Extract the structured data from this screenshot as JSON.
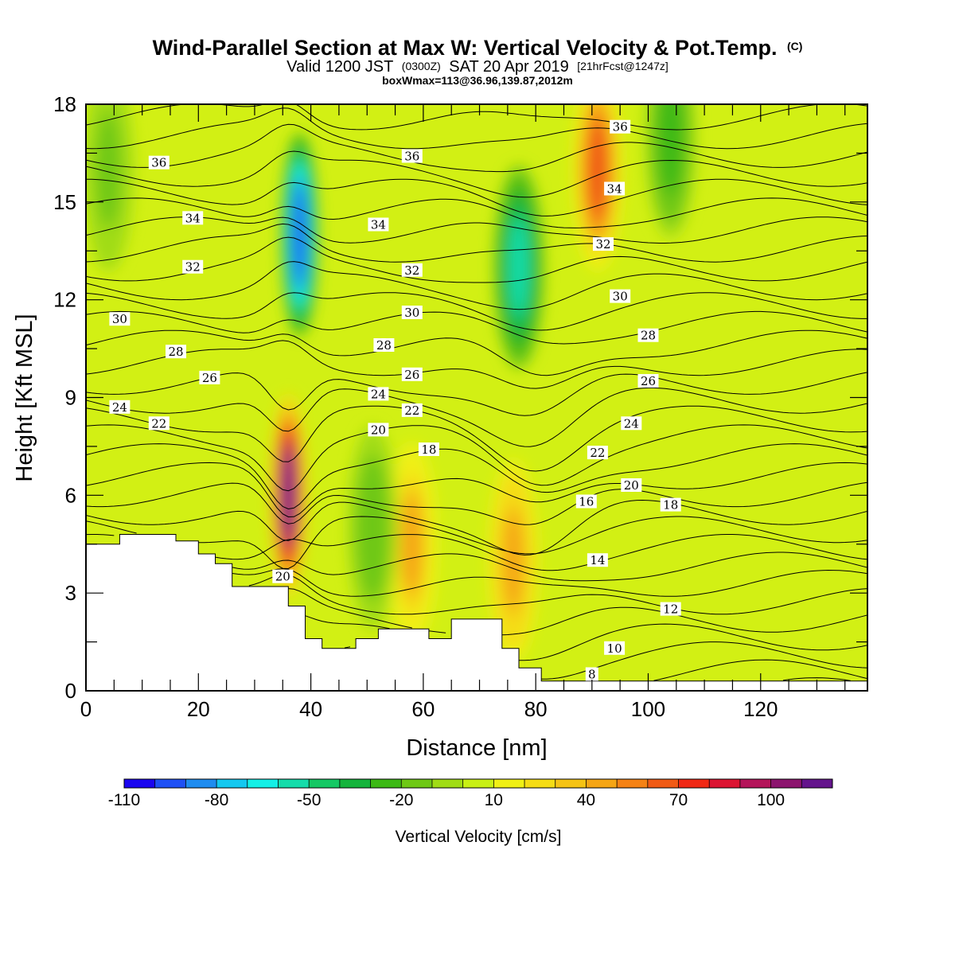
{
  "title": {
    "main": "Wind-Parallel Section at Max W: Vertical Velocity & Pot.Temp.",
    "copyright": "(C)",
    "valid_prefix": "Valid 1200 JST",
    "valid_utc": "(0300Z)",
    "valid_date": "SAT 20 Apr 2019",
    "forecast": "[21hrFcst@1247z]",
    "boxwmax": "boxWmax=113@36.96,139.87,2012m"
  },
  "colors": {
    "palette": [
      "#1a05f0",
      "#1e50f5",
      "#1e8cf0",
      "#14c8f0",
      "#14f0e6",
      "#14dcaa",
      "#14c864",
      "#14b43c",
      "#3cb914",
      "#6ec814",
      "#a0dc14",
      "#c8f014",
      "#f0f014",
      "#f5dc14",
      "#f5c314",
      "#f5a514",
      "#f58214",
      "#f05a14",
      "#f02814",
      "#dc1432",
      "#b4145a",
      "#8c146e",
      "#64148c"
    ],
    "terrain": "#ffffff",
    "contour": "#000000"
  },
  "chart_data": {
    "type": "heatmap",
    "description_fields": "filled vertical velocity with potential temperature contour overlay",
    "xlabel": "Distance [nm]",
    "ylabel": "Height [Kft MSL]",
    "xlim": [
      0,
      139
    ],
    "ylim": [
      0,
      18
    ],
    "x_ticks": [
      "0",
      "20",
      "40",
      "60",
      "80",
      "100",
      "120"
    ],
    "x_tick_values": [
      0,
      20,
      40,
      60,
      80,
      100,
      120
    ],
    "y_ticks": [
      "0",
      "3",
      "6",
      "9",
      "12",
      "15",
      "18"
    ],
    "y_tick_values": [
      0,
      3,
      6,
      9,
      12,
      15,
      18
    ],
    "colorbar": {
      "title": "Vertical Velocity [cm/s]",
      "labels": [
        "-110",
        "-80",
        "-50",
        "-20",
        "10",
        "40",
        "70",
        "100"
      ],
      "label_values": [
        -110,
        -80,
        -50,
        -20,
        10,
        40,
        70,
        100
      ],
      "min": -110,
      "max": 120,
      "step": 10
    },
    "vertical_velocity_features": [
      {
        "name": "downdraft",
        "x": 38,
        "y": 14,
        "value": -100
      },
      {
        "name": "updraft",
        "x": 36,
        "y": 6,
        "value": 110
      },
      {
        "name": "downdraft",
        "x": 77,
        "y": 13,
        "value": -55
      },
      {
        "name": "updraft",
        "x": 91,
        "y": 16,
        "value": 65
      },
      {
        "name": "updraft",
        "x": 76,
        "y": 4,
        "value": 45
      },
      {
        "name": "updraft",
        "x": 58,
        "y": 4.5,
        "value": 40
      },
      {
        "name": "downdraft",
        "x": 51,
        "y": 5,
        "value": -20
      },
      {
        "name": "downdraft",
        "x": 104,
        "y": 17,
        "value": -25
      },
      {
        "name": "downdraft",
        "x": 4,
        "y": 16,
        "value": -15
      }
    ],
    "terrain_profile": [
      [
        0,
        4.5
      ],
      [
        6,
        4.5
      ],
      [
        6,
        4.8
      ],
      [
        16,
        4.8
      ],
      [
        16,
        4.6
      ],
      [
        20,
        4.6
      ],
      [
        20,
        4.2
      ],
      [
        23,
        4.2
      ],
      [
        23,
        3.9
      ],
      [
        26,
        3.9
      ],
      [
        26,
        3.2
      ],
      [
        36,
        3.2
      ],
      [
        36,
        2.6
      ],
      [
        39,
        2.6
      ],
      [
        39,
        1.6
      ],
      [
        42,
        1.6
      ],
      [
        42,
        1.3
      ],
      [
        48,
        1.3
      ],
      [
        48,
        1.6
      ],
      [
        52,
        1.6
      ],
      [
        52,
        1.9
      ],
      [
        61,
        1.9
      ],
      [
        61,
        1.6
      ],
      [
        65,
        1.6
      ],
      [
        65,
        2.2
      ],
      [
        74,
        2.2
      ],
      [
        74,
        1.3
      ],
      [
        77,
        1.3
      ],
      [
        77,
        0.7
      ],
      [
        81,
        0.7
      ],
      [
        81,
        0.3
      ],
      [
        139,
        0.3
      ]
    ],
    "theta_contour_labels": [
      {
        "text": "36",
        "x": 13,
        "y": 16.2
      },
      {
        "text": "36",
        "x": 58,
        "y": 16.4
      },
      {
        "text": "36",
        "x": 95,
        "y": 17.3
      },
      {
        "text": "34",
        "x": 19,
        "y": 14.5
      },
      {
        "text": "34",
        "x": 52,
        "y": 14.3
      },
      {
        "text": "34",
        "x": 94,
        "y": 15.4
      },
      {
        "text": "32",
        "x": 19,
        "y": 13.0
      },
      {
        "text": "32",
        "x": 58,
        "y": 12.9
      },
      {
        "text": "32",
        "x": 92,
        "y": 13.7
      },
      {
        "text": "30",
        "x": 6,
        "y": 11.4
      },
      {
        "text": "30",
        "x": 58,
        "y": 11.6
      },
      {
        "text": "30",
        "x": 95,
        "y": 12.1
      },
      {
        "text": "28",
        "x": 16,
        "y": 10.4
      },
      {
        "text": "28",
        "x": 53,
        "y": 10.6
      },
      {
        "text": "28",
        "x": 100,
        "y": 10.9
      },
      {
        "text": "26",
        "x": 22,
        "y": 9.6
      },
      {
        "text": "26",
        "x": 58,
        "y": 9.7
      },
      {
        "text": "26",
        "x": 100,
        "y": 9.5
      },
      {
        "text": "24",
        "x": 6,
        "y": 8.7
      },
      {
        "text": "24",
        "x": 52,
        "y": 9.1
      },
      {
        "text": "24",
        "x": 97,
        "y": 8.2
      },
      {
        "text": "22",
        "x": 13,
        "y": 8.2
      },
      {
        "text": "22",
        "x": 58,
        "y": 8.6
      },
      {
        "text": "22",
        "x": 91,
        "y": 7.3
      },
      {
        "text": "20",
        "x": 52,
        "y": 8.0
      },
      {
        "text": "20",
        "x": 97,
        "y": 6.3
      },
      {
        "text": "20",
        "x": 35,
        "y": 3.5
      },
      {
        "text": "18",
        "x": 61,
        "y": 7.4
      },
      {
        "text": "18",
        "x": 104,
        "y": 5.7
      },
      {
        "text": "16",
        "x": 89,
        "y": 5.8
      },
      {
        "text": "14",
        "x": 91,
        "y": 4.0
      },
      {
        "text": "12",
        "x": 104,
        "y": 2.5
      },
      {
        "text": "10",
        "x": 94,
        "y": 1.3
      },
      {
        "text": "8",
        "x": 90,
        "y": 0.5
      }
    ]
  }
}
